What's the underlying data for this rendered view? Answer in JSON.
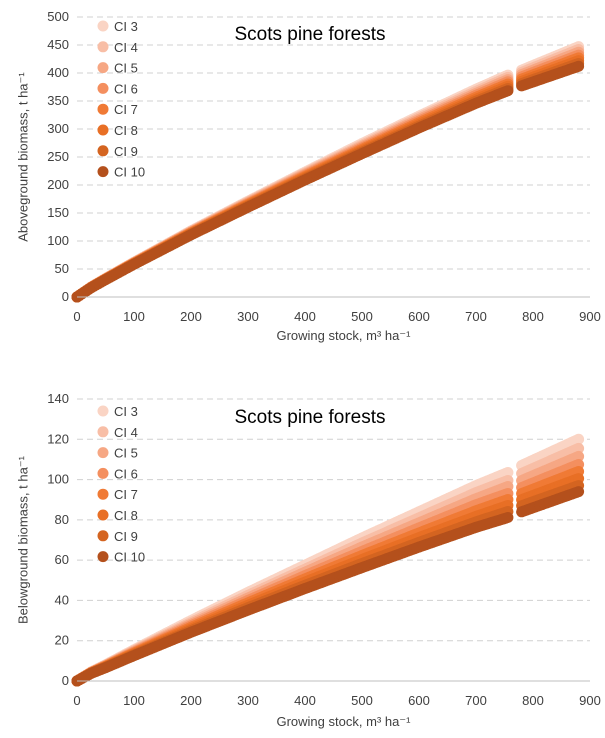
{
  "chart_data": [
    {
      "type": "scatter",
      "title": "Scots pine forests",
      "xlabel": "Growing stock, m³ ha⁻¹",
      "ylabel": "Aboveground biomass, t ha⁻¹",
      "xlim": [
        0,
        900
      ],
      "ylim": [
        0,
        500
      ],
      "xticks": [
        "0",
        "100",
        "200",
        "300",
        "400",
        "500",
        "600",
        "700",
        "800",
        "900"
      ],
      "yticks": [
        "0",
        "50",
        "100",
        "150",
        "200",
        "250",
        "300",
        "350",
        "400",
        "450",
        "500"
      ],
      "grid": "horizontal dashed",
      "legend": "top-left",
      "x": [
        0,
        25,
        50,
        100,
        200,
        300,
        400,
        500,
        600,
        700,
        760,
        780,
        880
      ],
      "series": [
        {
          "name": "CI 3",
          "color": "#fad4c4",
          "values": [
            0,
            18,
            33,
            62,
            118,
            171,
            223,
            274,
            323,
            371,
            398,
            405,
            447
          ]
        },
        {
          "name": "CI 4",
          "color": "#f8bea6",
          "values": [
            0,
            17.8,
            32.7,
            61.5,
            117,
            169.5,
            221,
            271,
            320,
            367,
            394,
            401,
            442
          ]
        },
        {
          "name": "CI 5",
          "color": "#f6a784",
          "values": [
            0,
            17.6,
            32.4,
            61,
            116,
            168,
            219,
            268.5,
            317,
            363.5,
            390,
            397,
            437
          ]
        },
        {
          "name": "CI 6",
          "color": "#f48f5f",
          "values": [
            0,
            17.4,
            32.1,
            60.5,
            115,
            166.5,
            217,
            266,
            314,
            360,
            386,
            393,
            432
          ]
        },
        {
          "name": "CI 7",
          "color": "#f07a35",
          "values": [
            0,
            17.2,
            31.8,
            60,
            114,
            165,
            215,
            263.5,
            311,
            356.5,
            382,
            389,
            427
          ]
        },
        {
          "name": "CI 8",
          "color": "#e86f25",
          "values": [
            0,
            17,
            31.5,
            59.5,
            113,
            163.5,
            213,
            261,
            308,
            353,
            378,
            385,
            422
          ]
        },
        {
          "name": "CI 9",
          "color": "#d46420",
          "values": [
            0,
            16.8,
            31.2,
            59,
            112,
            162,
            211,
            258.5,
            305,
            349.5,
            374,
            381,
            417
          ]
        },
        {
          "name": "CI 10",
          "color": "#b4501c",
          "values": [
            0,
            16.6,
            30.9,
            58.5,
            111,
            160.5,
            209,
            256,
            302,
            346,
            370,
            377,
            412
          ]
        }
      ]
    },
    {
      "type": "scatter",
      "title": "Scots pine forests",
      "xlabel": "Growing stock, m³ ha⁻¹",
      "ylabel": "Belowground biomass, t ha⁻¹",
      "xlim": [
        0,
        900
      ],
      "ylim": [
        0,
        140
      ],
      "xticks": [
        "0",
        "100",
        "200",
        "300",
        "400",
        "500",
        "600",
        "700",
        "800",
        "900"
      ],
      "yticks": [
        "0",
        "20",
        "40",
        "60",
        "80",
        "100",
        "120",
        "140"
      ],
      "grid": "horizontal dashed",
      "legend": "top-left",
      "x": [
        0,
        25,
        50,
        100,
        200,
        300,
        400,
        500,
        600,
        700,
        760,
        780,
        880
      ],
      "series": [
        {
          "name": "CI 3",
          "color": "#fad4c4",
          "values": [
            0,
            4.5,
            8,
            15.5,
            30,
            44,
            57.5,
            71,
            84,
            97,
            104,
            107,
            120
          ]
        },
        {
          "name": "CI 4",
          "color": "#f8bea6",
          "values": [
            0,
            4.4,
            7.8,
            15,
            29,
            42.5,
            55.5,
            68.5,
            81,
            93.5,
            100,
            103,
            115.5
          ]
        },
        {
          "name": "CI 5",
          "color": "#f6a784",
          "values": [
            0,
            4.3,
            7.6,
            14.6,
            28.2,
            41.2,
            54,
            66.5,
            78.5,
            90.5,
            97,
            99.5,
            111.5
          ]
        },
        {
          "name": "CI 6",
          "color": "#f48f5f",
          "values": [
            0,
            4.2,
            7.4,
            14.2,
            27.4,
            40,
            52.3,
            64.3,
            76,
            87.5,
            93.5,
            96,
            107.5
          ]
        },
        {
          "name": "CI 7",
          "color": "#f07a35",
          "values": [
            0,
            4.1,
            7.2,
            13.8,
            26.6,
            38.8,
            50.7,
            62.3,
            73.5,
            84.5,
            90.5,
            93,
            104
          ]
        },
        {
          "name": "CI 8",
          "color": "#e86f25",
          "values": [
            0,
            4.0,
            7.0,
            13.4,
            25.8,
            37.6,
            49.1,
            60.3,
            71.2,
            81.7,
            87.5,
            90,
            100.5
          ]
        },
        {
          "name": "CI 9",
          "color": "#d46420",
          "values": [
            0,
            3.9,
            6.8,
            13.0,
            25.0,
            36.4,
            47.5,
            58.3,
            68.8,
            79,
            84.5,
            87,
            97
          ]
        },
        {
          "name": "CI 10",
          "color": "#b4501c",
          "values": [
            0,
            3.8,
            6.6,
            12.6,
            24.2,
            35.2,
            45.9,
            56.3,
            66.5,
            76.3,
            81.5,
            84,
            94
          ]
        }
      ]
    }
  ]
}
